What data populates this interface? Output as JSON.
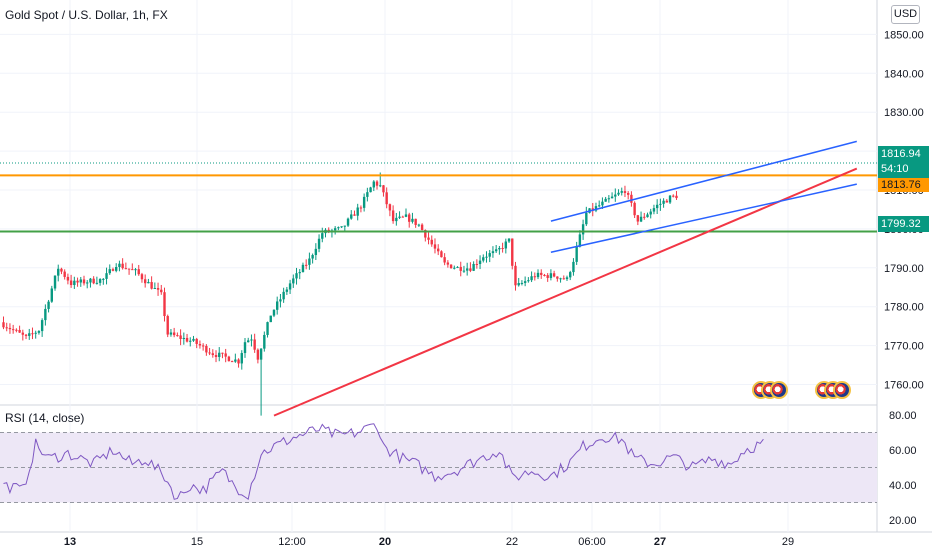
{
  "header": {
    "title": "Gold Spot / U.S. Dollar, 1h, FX"
  },
  "currency_button": "USD",
  "price_tags": {
    "last_price": "1816.94",
    "countdown": "54:10",
    "orange_level": "1813.76",
    "green_level": "1799.32"
  },
  "rsi_label": "RSI (14, close)",
  "colors": {
    "up": "#089981",
    "down": "#f23645",
    "orange_line": "#ff9800",
    "green_line": "#43a047",
    "trend_red": "#f23645",
    "channel_blue": "#2962ff",
    "rsi_line": "#7e57c2",
    "rsi_band": "#ede7f6"
  },
  "chart_data": [
    {
      "type": "candlestick",
      "title": "Gold Spot / U.S. Dollar, 1h, FX",
      "ylim": [
        1752,
        1852
      ],
      "y_ticks": [
        1760,
        1770,
        1780,
        1790,
        1800,
        1810,
        1820,
        1830,
        1840,
        1850
      ],
      "y_tick_labels": [
        "1760.00",
        "1770.00",
        "1780.00",
        "1790.00",
        "1800.00",
        "1810.00",
        "1820.00",
        "1830.00",
        "1840.00",
        "1850.00"
      ],
      "x_tick_labels": [
        "13",
        "15",
        "12:00",
        "20",
        "22",
        "06:00",
        "27",
        "29"
      ],
      "x_tick_bold": [
        true,
        false,
        false,
        true,
        false,
        false,
        true,
        false
      ],
      "bar_count": 210,
      "anchors": [
        [
          0,
          1776
        ],
        [
          8,
          1772
        ],
        [
          12,
          1774
        ],
        [
          18,
          1790
        ],
        [
          22,
          1786
        ],
        [
          32,
          1787
        ],
        [
          36,
          1791
        ],
        [
          42,
          1789
        ],
        [
          46,
          1786
        ],
        [
          50,
          1783
        ],
        [
          52,
          1773
        ],
        [
          60,
          1771
        ],
        [
          66,
          1768
        ],
        [
          70,
          1767
        ],
        [
          74,
          1766
        ],
        [
          76,
          1771
        ],
        [
          78,
          1772
        ],
        [
          80,
          1767
        ],
        [
          84,
          1778
        ],
        [
          90,
          1786
        ],
        [
          96,
          1792
        ],
        [
          100,
          1799
        ],
        [
          106,
          1800
        ],
        [
          112,
          1806
        ],
        [
          116,
          1812
        ],
        [
          118,
          1811
        ],
        [
          122,
          1802
        ],
        [
          126,
          1803
        ],
        [
          130,
          1801
        ],
        [
          134,
          1796
        ],
        [
          138,
          1791
        ],
        [
          142,
          1790
        ],
        [
          146,
          1790
        ],
        [
          150,
          1793
        ],
        [
          154,
          1794
        ],
        [
          158,
          1797
        ],
        [
          160,
          1785
        ],
        [
          166,
          1788
        ],
        [
          172,
          1788
        ],
        [
          176,
          1787
        ],
        [
          178,
          1792
        ],
        [
          182,
          1804
        ],
        [
          188,
          1807
        ],
        [
          194,
          1810
        ],
        [
          198,
          1802
        ],
        [
          204,
          1806
        ],
        [
          208,
          1808
        ],
        [
          212,
          1809
        ],
        [
          218,
          1809
        ],
        [
          222,
          1807
        ],
        [
          226,
          1808
        ],
        [
          230,
          1813
        ],
        [
          236,
          1816.9
        ]
      ],
      "wick_extremes": [
        {
          "bar": 80,
          "low": 1752
        },
        {
          "bar": 117,
          "high": 1814.5
        }
      ],
      "horizontal_levels": [
        {
          "value": 1813.76,
          "color": "orange"
        },
        {
          "value": 1799.32,
          "color": "green"
        }
      ],
      "trend_lines": [
        {
          "color": "red",
          "from": {
            "bar": 84,
            "value": 1752
          },
          "to": {
            "bar": 265,
            "value": 1815.5
          }
        },
        {
          "color": "blue",
          "from": {
            "bar": 170,
            "value": 1802
          },
          "to": {
            "bar": 265,
            "value": 1822.5
          }
        },
        {
          "color": "blue",
          "from": {
            "bar": 170,
            "value": 1794
          },
          "to": {
            "bar": 265,
            "value": 1811.5
          }
        }
      ],
      "last_price": 1816.94
    },
    {
      "type": "line",
      "title": "RSI (14, close)",
      "ylim": [
        20,
        80
      ],
      "y_ticks": [
        20,
        40,
        60,
        80
      ],
      "y_tick_labels": [
        "20.00",
        "40.00",
        "60.00",
        "80.00"
      ],
      "band": [
        30,
        70
      ],
      "midline": 50,
      "anchors": [
        [
          0,
          40
        ],
        [
          6,
          37
        ],
        [
          10,
          63
        ],
        [
          14,
          55
        ],
        [
          20,
          58
        ],
        [
          28,
          52
        ],
        [
          34,
          60
        ],
        [
          40,
          52
        ],
        [
          44,
          55
        ],
        [
          50,
          45
        ],
        [
          54,
          32
        ],
        [
          58,
          40
        ],
        [
          62,
          37
        ],
        [
          68,
          48
        ],
        [
          72,
          39
        ],
        [
          76,
          35
        ],
        [
          80,
          58
        ],
        [
          84,
          62
        ],
        [
          90,
          67
        ],
        [
          98,
          72
        ],
        [
          104,
          68
        ],
        [
          110,
          70
        ],
        [
          116,
          75
        ],
        [
          118,
          62
        ],
        [
          124,
          55
        ],
        [
          128,
          52
        ],
        [
          134,
          45
        ],
        [
          140,
          48
        ],
        [
          148,
          55
        ],
        [
          154,
          60
        ],
        [
          158,
          44
        ],
        [
          164,
          48
        ],
        [
          170,
          45
        ],
        [
          176,
          53
        ],
        [
          180,
          62
        ],
        [
          186,
          68
        ],
        [
          192,
          66
        ],
        [
          196,
          55
        ],
        [
          202,
          52
        ],
        [
          208,
          56
        ],
        [
          214,
          50
        ],
        [
          220,
          55
        ],
        [
          226,
          52
        ],
        [
          230,
          60
        ],
        [
          236,
          64
        ]
      ]
    }
  ]
}
